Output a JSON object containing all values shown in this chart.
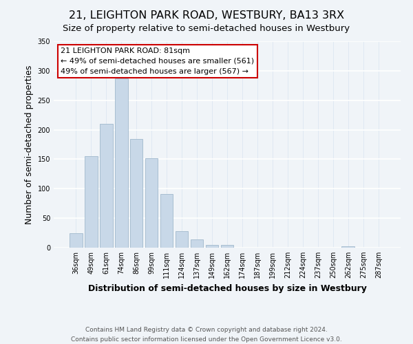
{
  "title": "21, LEIGHTON PARK ROAD, WESTBURY, BA13 3RX",
  "subtitle": "Size of property relative to semi-detached houses in Westbury",
  "xlabel": "Distribution of semi-detached houses by size in Westbury",
  "ylabel": "Number of semi-detached properties",
  "bar_labels": [
    "36sqm",
    "49sqm",
    "61sqm",
    "74sqm",
    "86sqm",
    "99sqm",
    "111sqm",
    "124sqm",
    "137sqm",
    "149sqm",
    "162sqm",
    "174sqm",
    "187sqm",
    "199sqm",
    "212sqm",
    "224sqm",
    "237sqm",
    "250sqm",
    "262sqm",
    "275sqm",
    "287sqm"
  ],
  "bar_values": [
    25,
    155,
    210,
    287,
    184,
    152,
    91,
    28,
    14,
    5,
    5,
    0,
    0,
    0,
    0,
    0,
    0,
    0,
    2,
    0,
    0
  ],
  "bar_color": "#c8d8e8",
  "bar_edge_color": "#a0b8cc",
  "ylim": [
    0,
    350
  ],
  "yticks": [
    0,
    50,
    100,
    150,
    200,
    250,
    300,
    350
  ],
  "annotation_line1": "21 LEIGHTON PARK ROAD: 81sqm",
  "annotation_line2": "← 49% of semi-detached houses are smaller (561)",
  "annotation_line3": "49% of semi-detached houses are larger (567) →",
  "footer_line1": "Contains HM Land Registry data © Crown copyright and database right 2024.",
  "footer_line2": "Contains public sector information licensed under the Open Government Licence v3.0.",
  "background_color": "#f0f4f8",
  "grid_color": "#d8e4f0",
  "title_fontsize": 11.5,
  "subtitle_fontsize": 9.5,
  "axis_label_fontsize": 9,
  "tick_fontsize": 7,
  "annotation_fontsize": 8,
  "footer_fontsize": 6.5
}
